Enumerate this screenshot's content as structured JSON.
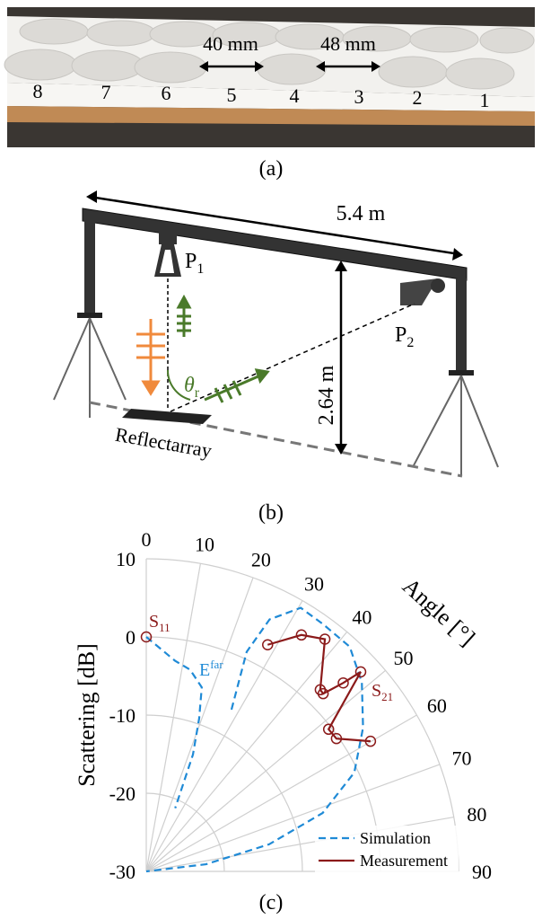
{
  "panel_a": {
    "caption": "(a)",
    "dimensions": [
      "40 mm",
      "48 mm"
    ],
    "slot_labels": [
      "8",
      "7",
      "6",
      "5",
      "4",
      "3",
      "2",
      "1"
    ]
  },
  "panel_b": {
    "caption": "(b)",
    "span": "5.4 m",
    "height": "2.64 m",
    "probe_1": {
      "text": "P",
      "sub": "1"
    },
    "probe_2": {
      "text": "P",
      "sub": "2"
    },
    "angle": {
      "text": "θ",
      "sub": "r"
    },
    "target": "Reflectarray"
  },
  "panel_c_caption": "(c)",
  "chart_data": {
    "type": "polar",
    "xlabel": "Angle [°]",
    "ylabel": "Scattering [dB]",
    "xlim": [
      0,
      90
    ],
    "xticks": [
      0,
      10,
      20,
      30,
      40,
      50,
      60,
      70,
      80,
      90
    ],
    "ylim": [
      -30,
      10
    ],
    "yticks": [
      -30,
      -20,
      -10,
      0,
      10
    ],
    "grid": true,
    "legend": "lower right",
    "series": [
      {
        "name": "Simulation",
        "color": "#1f8ad6",
        "dashed": true,
        "markers": false,
        "x": [
          0,
          7.8,
          12.3,
          16.8,
          19.1,
          21.8,
          24.6,
          null,
          27.8,
          24.6,
          26.1,
          30.4,
          35.6,
          42.2,
          48.8,
          56.5,
          64.6,
          71.7,
          77.6,
          83.2,
          90
        ],
        "values": [
          0,
          -2.8,
          -3.6,
          -5.4,
          -9.3,
          -13.9,
          -21.1,
          null,
          -6.6,
          0.9,
          5.9,
          9.1,
          8.9,
          8.8,
          6.7,
          3.3,
          -0.5,
          -6.2,
          -13.9,
          -22.3,
          -30
        ]
      },
      {
        "name": "Measurement",
        "color": "#8b1a1a",
        "dashed": false,
        "markers": true,
        "x": [
          0,
          null,
          28.2,
          33.3,
          37.6,
          43.8,
          44.9,
          46.3,
          47.1,
          52.1,
          55.1,
          59.9
        ],
        "values": [
          0,
          null,
          2.9,
          6.2,
          7.5,
          2.2,
          2.1,
          4.9,
          7.5,
          -0.4,
          -0.3,
          3.2
        ]
      }
    ],
    "annotations": [
      {
        "text": "S",
        "sub": "11",
        "color": "#8b1a1a"
      },
      {
        "text": "E",
        "sup": "far",
        "color": "#1f8ad6"
      },
      {
        "text": "S",
        "sub": "21",
        "color": "#8b1a1a"
      }
    ]
  }
}
